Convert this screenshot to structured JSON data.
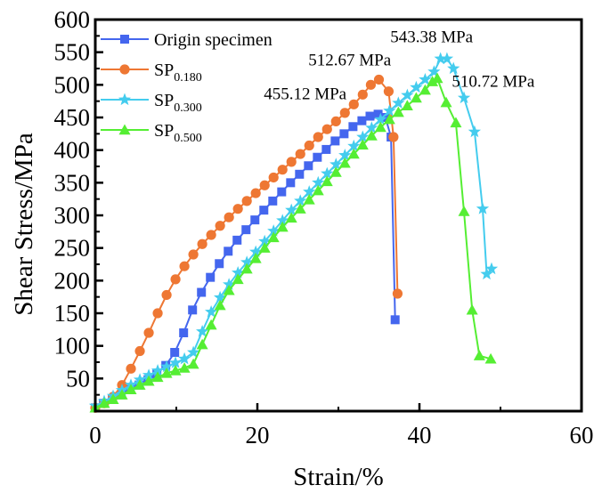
{
  "chart_data": {
    "type": "line",
    "title": "",
    "xlabel": "Strain/%",
    "ylabel": "Shear Stress/MPa",
    "xlim": [
      0,
      60
    ],
    "ylim": [
      0,
      600
    ],
    "xticks": [
      0,
      20,
      40,
      60
    ],
    "xticks_minor": [
      10,
      30,
      50
    ],
    "yticks": [
      50,
      100,
      150,
      200,
      250,
      300,
      350,
      400,
      450,
      500,
      550,
      600
    ],
    "grid": false,
    "legend_position": "top-left",
    "series": [
      {
        "name": "Origin specimen",
        "label_main": "Origin specimen",
        "label_sub": "",
        "color": "#4466ee",
        "marker": "square",
        "x": [
          0,
          1.0,
          2.1,
          3.2,
          4.3,
          5.4,
          6.5,
          7.6,
          8.7,
          9.8,
          10.9,
          12.0,
          13.1,
          14.2,
          15.3,
          16.4,
          17.5,
          18.6,
          19.7,
          20.8,
          21.9,
          23.0,
          24.1,
          25.2,
          26.3,
          27.4,
          28.5,
          29.6,
          30.7,
          31.8,
          32.9,
          33.9,
          34.9,
          35.8,
          36.5,
          37.0
        ],
        "y": [
          5,
          12,
          18,
          25,
          33,
          40,
          48,
          57,
          70,
          90,
          120,
          155,
          182,
          205,
          226,
          245,
          262,
          278,
          293,
          308,
          322,
          336,
          350,
          363,
          376,
          389,
          401,
          414,
          425,
          436,
          445,
          452,
          455,
          450,
          420,
          140
        ]
      },
      {
        "name": "SP0.180",
        "label_main": "SP",
        "label_sub": "0.180",
        "color": "#ee7733",
        "marker": "circle",
        "x": [
          0,
          1.1,
          2.2,
          3.3,
          4.4,
          5.5,
          6.6,
          7.7,
          8.8,
          9.9,
          11.0,
          12.1,
          13.2,
          14.3,
          15.4,
          16.5,
          17.6,
          18.7,
          19.8,
          20.9,
          22.0,
          23.1,
          24.2,
          25.3,
          26.4,
          27.5,
          28.6,
          29.7,
          30.8,
          31.9,
          33.0,
          34.0,
          35.0,
          36.2,
          36.8,
          37.3
        ],
        "y": [
          5,
          12,
          22,
          40,
          65,
          92,
          120,
          150,
          178,
          202,
          222,
          240,
          256,
          270,
          284,
          297,
          310,
          322,
          334,
          346,
          358,
          370,
          382,
          394,
          407,
          420,
          432,
          444,
          457,
          470,
          485,
          500,
          508,
          490,
          420,
          180
        ]
      },
      {
        "name": "SP0.300",
        "label_main": "SP",
        "label_sub": "0.300",
        "color": "#44ccee",
        "marker": "star",
        "x": [
          0,
          1.1,
          2.2,
          3.3,
          4.4,
          5.5,
          6.6,
          7.7,
          8.8,
          9.9,
          11.0,
          12.1,
          13.2,
          14.3,
          15.4,
          16.5,
          17.6,
          18.7,
          19.8,
          20.9,
          22.0,
          23.1,
          24.2,
          25.3,
          26.4,
          27.5,
          28.6,
          29.7,
          30.8,
          31.9,
          33.0,
          34.1,
          35.2,
          36.3,
          37.4,
          38.5,
          39.6,
          40.7,
          41.8,
          42.6,
          43.4,
          44.2,
          45.5,
          46.8,
          47.8,
          48.3,
          48.9
        ],
        "y": [
          8,
          15,
          23,
          32,
          40,
          48,
          55,
          62,
          68,
          74,
          80,
          90,
          122,
          152,
          174,
          194,
          212,
          228,
          244,
          260,
          276,
          292,
          308,
          322,
          336,
          350,
          364,
          378,
          392,
          406,
          420,
          434,
          447,
          460,
          472,
          484,
          496,
          508,
          520,
          540,
          540,
          525,
          480,
          428,
          310,
          210,
          218
        ]
      },
      {
        "name": "SP0.500",
        "label_main": "SP",
        "label_sub": "0.500",
        "color": "#55ee33",
        "marker": "triangle",
        "x": [
          0,
          1.1,
          2.2,
          3.3,
          4.4,
          5.5,
          6.6,
          7.7,
          8.8,
          9.9,
          11.0,
          12.1,
          13.2,
          14.3,
          15.4,
          16.5,
          17.6,
          18.7,
          19.8,
          20.9,
          22.0,
          23.1,
          24.2,
          25.3,
          26.4,
          27.5,
          28.6,
          29.7,
          30.8,
          31.9,
          33.0,
          34.1,
          35.2,
          36.3,
          37.4,
          38.5,
          39.6,
          40.7,
          41.6,
          42.2,
          43.3,
          44.5,
          45.5,
          46.5,
          47.4,
          48.8
        ],
        "y": [
          5,
          12,
          18,
          25,
          33,
          40,
          46,
          52,
          58,
          62,
          66,
          72,
          102,
          132,
          162,
          185,
          202,
          218,
          234,
          250,
          266,
          282,
          296,
          310,
          324,
          338,
          352,
          366,
          380,
          394,
          408,
          422,
          435,
          447,
          458,
          468,
          480,
          492,
          505,
          510,
          473,
          442,
          306,
          155,
          85,
          80
        ]
      }
    ],
    "annotations": [
      {
        "text": "455.12 MPa",
        "x": 31,
        "y": 478,
        "anchor": "end"
      },
      {
        "text": "512.67 MPa",
        "x": 36.5,
        "y": 530,
        "anchor": "end"
      },
      {
        "text": "543.38 MPa",
        "x": 41.5,
        "y": 565,
        "anchor": "middle"
      },
      {
        "text": "510.72 MPa",
        "x": 44,
        "y": 497,
        "anchor": "start"
      }
    ]
  }
}
